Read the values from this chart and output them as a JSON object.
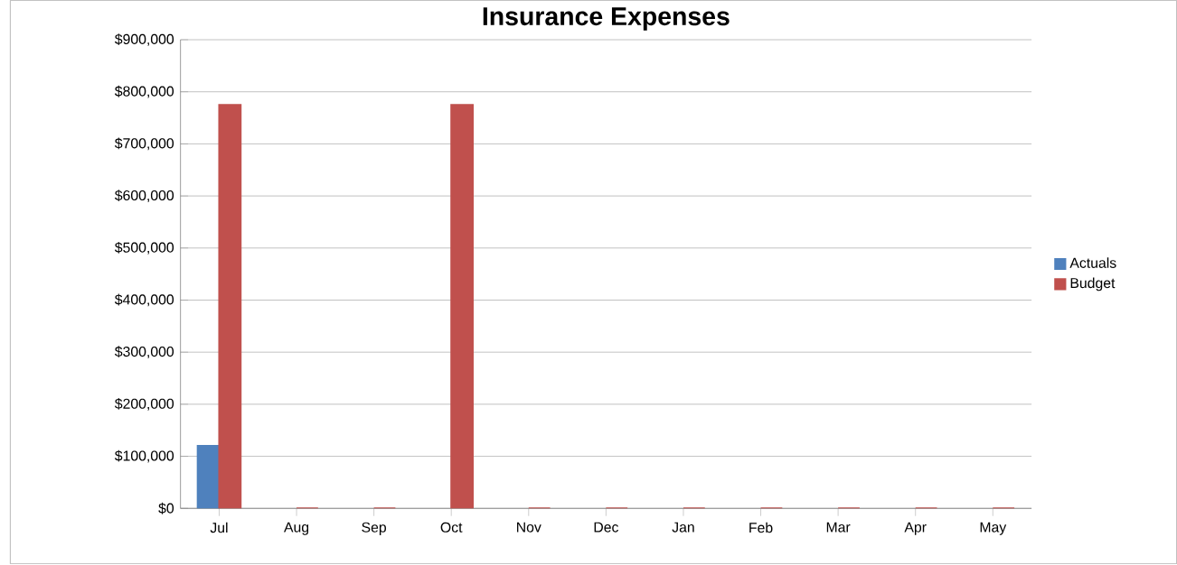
{
  "chart_data": {
    "type": "bar",
    "title": "Insurance Expenses",
    "categories": [
      "Jul",
      "Aug",
      "Sep",
      "Oct",
      "Nov",
      "Dec",
      "Jan",
      "Feb",
      "Mar",
      "Apr",
      "May"
    ],
    "series": [
      {
        "name": "Actuals",
        "color": "#4f81bd",
        "values": [
          120000,
          null,
          null,
          null,
          null,
          null,
          null,
          null,
          null,
          null,
          null
        ]
      },
      {
        "name": "Budget",
        "color": "#c0504d",
        "values": [
          775000,
          0,
          0,
          775000,
          0,
          0,
          0,
          0,
          0,
          0,
          0
        ]
      }
    ],
    "ylim": [
      0,
      900000
    ],
    "yticks": [
      {
        "value": 0,
        "label": "$0"
      },
      {
        "value": 100000,
        "label": "$100,000"
      },
      {
        "value": 200000,
        "label": "$200,000"
      },
      {
        "value": 300000,
        "label": "$300,000"
      },
      {
        "value": 400000,
        "label": "$400,000"
      },
      {
        "value": 500000,
        "label": "$500,000"
      },
      {
        "value": 600000,
        "label": "$600,000"
      },
      {
        "value": 700000,
        "label": "$700,000"
      },
      {
        "value": 800000,
        "label": "$800,000"
      },
      {
        "value": 900000,
        "label": "$900,000"
      }
    ],
    "grid": "y",
    "legend": "right"
  }
}
